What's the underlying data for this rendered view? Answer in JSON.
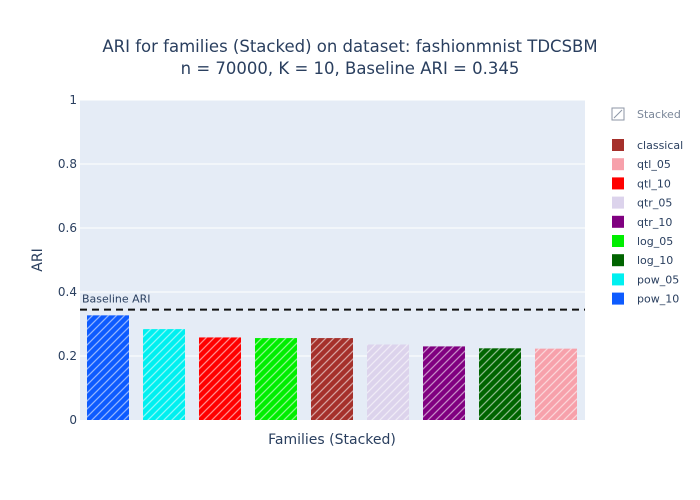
{
  "chart_data": {
    "type": "bar",
    "title_line1": "ARI for families (Stacked) on dataset: fashionmnist TDCSBM",
    "title_line2": "n = 70000, K = 10, Baseline ARI = 0.345",
    "xlabel": "Families (Stacked)",
    "ylabel": "ARI",
    "ylim": [
      0,
      1
    ],
    "yticks": [
      "0",
      "0.2",
      "0.4",
      "0.6",
      "0.8",
      "1"
    ],
    "ytick_values": [
      0,
      0.2,
      0.4,
      0.6,
      0.8,
      1
    ],
    "grid": true,
    "baseline": {
      "value": 0.345,
      "label": "Baseline ARI",
      "style": "dashed"
    },
    "legend_position": "right",
    "legend_group_title": "Stacked",
    "categories": [
      "pow_10",
      "pow_05",
      "qtl_10",
      "log_05",
      "classical",
      "qtr_05",
      "qtr_10",
      "log_10",
      "qtl_05"
    ],
    "values": [
      0.327,
      0.284,
      0.258,
      0.256,
      0.256,
      0.236,
      0.23,
      0.224,
      0.223
    ],
    "colors": [
      "#0d5bff",
      "#00f0f0",
      "#ff0000",
      "#00ee00",
      "#a5302b",
      "#dcd3ec",
      "#800080",
      "#006400",
      "#f7a1ab"
    ],
    "legend": [
      {
        "name": "classical",
        "color": "#a5302b"
      },
      {
        "name": "qtl_05",
        "color": "#f7a1ab"
      },
      {
        "name": "qtl_10",
        "color": "#ff0000"
      },
      {
        "name": "qtr_05",
        "color": "#dcd3ec"
      },
      {
        "name": "qtr_10",
        "color": "#800080"
      },
      {
        "name": "log_05",
        "color": "#00ee00"
      },
      {
        "name": "log_10",
        "color": "#006400"
      },
      {
        "name": "pow_05",
        "color": "#00f0f0"
      },
      {
        "name": "pow_10",
        "color": "#0d5bff"
      }
    ],
    "plot_bg": "#e5ecf6",
    "text_color": "#2a3f5f"
  }
}
